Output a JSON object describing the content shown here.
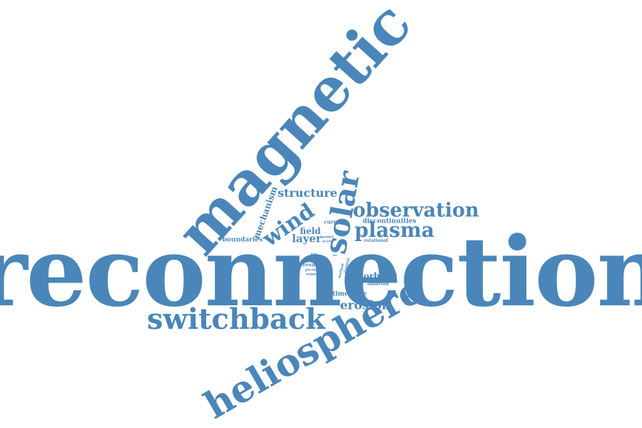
{
  "word_cloud": {
    "color": "#4a86b9",
    "words": [
      {
        "text": "reconnection"
      },
      {
        "text": "magnetic"
      },
      {
        "text": "heliosphere"
      },
      {
        "text": "switchback"
      },
      {
        "text": "observation"
      },
      {
        "text": "solar"
      },
      {
        "text": "plasma"
      },
      {
        "text": "wind"
      },
      {
        "text": "structure"
      },
      {
        "text": "mechanism"
      },
      {
        "text": "erosion"
      },
      {
        "text": "layer"
      },
      {
        "text": "field"
      },
      {
        "text": "orbiter"
      },
      {
        "text": "boundaries"
      },
      {
        "text": "discontinuities"
      },
      {
        "text": "timescale"
      },
      {
        "text": "current"
      },
      {
        "text": "rotational"
      },
      {
        "text": "observed"
      },
      {
        "text": "event"
      },
      {
        "text": "result"
      },
      {
        "text": "model"
      },
      {
        "text": "scale"
      },
      {
        "text": "picture"
      },
      {
        "text": "august"
      },
      {
        "text": "method"
      },
      {
        "text": "tangent"
      },
      {
        "text": "new"
      },
      {
        "text": "arc"
      }
    ]
  }
}
